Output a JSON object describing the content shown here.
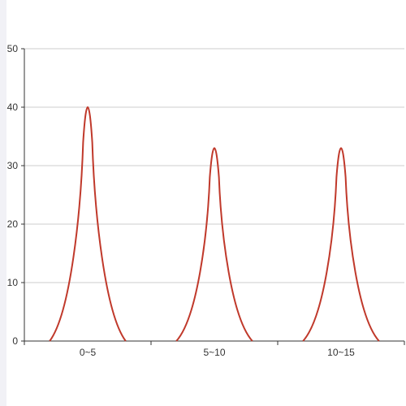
{
  "chart_data": {
    "type": "area",
    "categories": [
      "0~5",
      "5~10",
      "10~15"
    ],
    "values": [
      40,
      33,
      33
    ],
    "ylim": [
      0,
      50
    ],
    "yticks": [
      0,
      10,
      20,
      30,
      40,
      50
    ],
    "title": "",
    "xlabel": "",
    "ylabel": "",
    "grid": true,
    "series_color": "#c0392b"
  }
}
